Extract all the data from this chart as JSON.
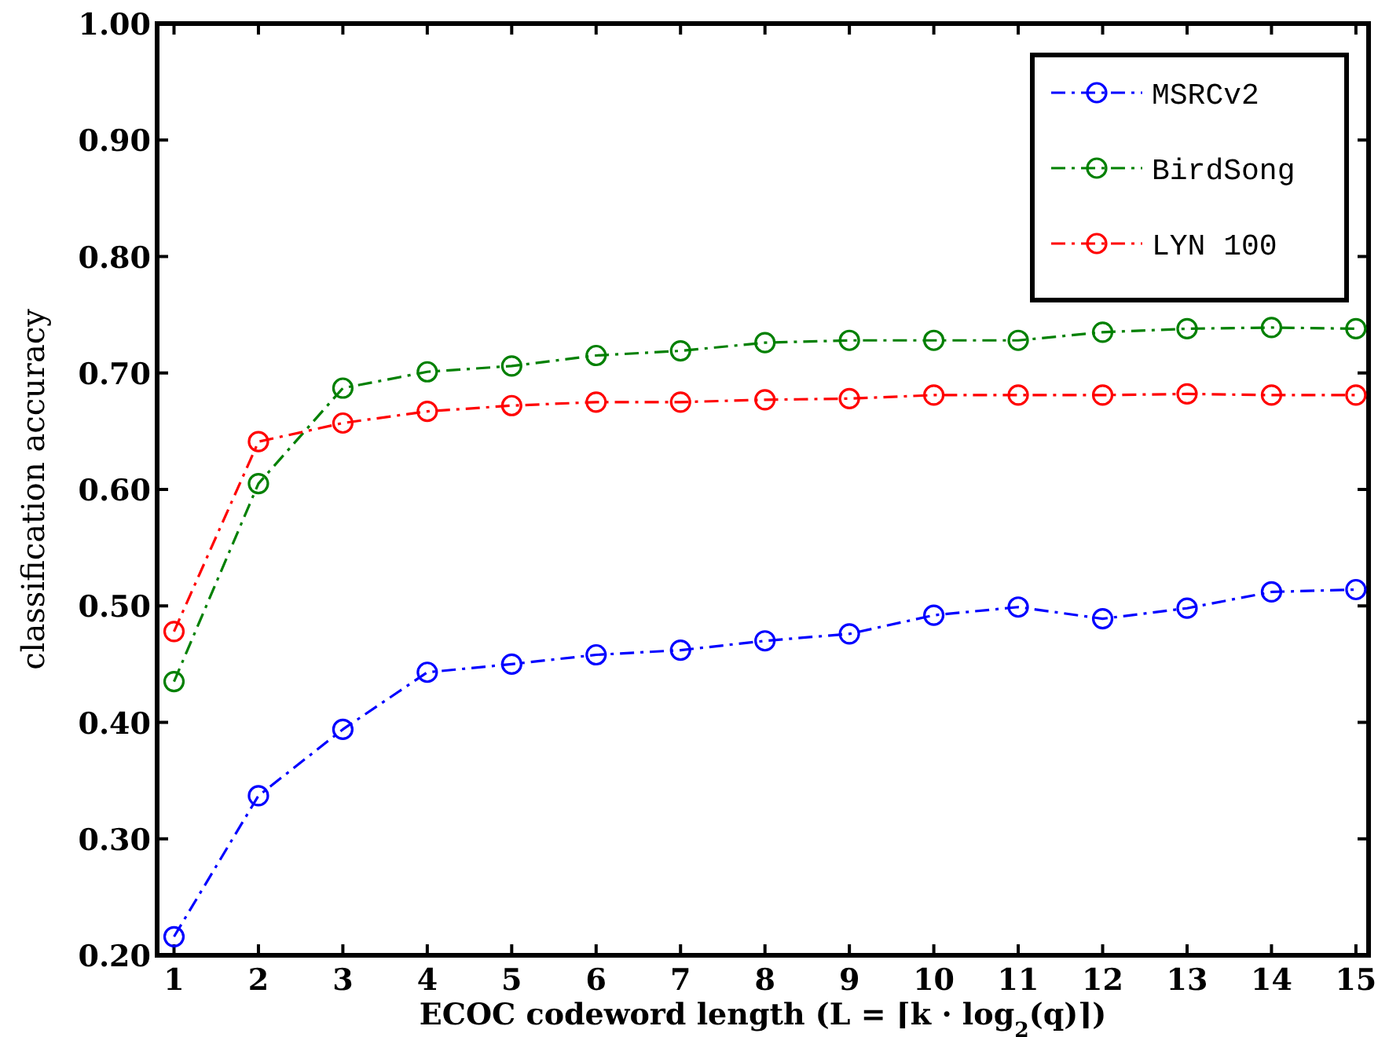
{
  "chart_data": {
    "type": "line",
    "xlabel": "ECOC codeword length (L = ⌈k · log$_{2}$(q)⌉)",
    "ylabel": "classification accuracy",
    "x": [
      1,
      2,
      3,
      4,
      5,
      6,
      7,
      8,
      9,
      10,
      11,
      12,
      13,
      14,
      15
    ],
    "xlim": [
      0.8,
      15.15
    ],
    "xticks": [
      1,
      2,
      3,
      4,
      5,
      6,
      7,
      8,
      9,
      10,
      11,
      12,
      13,
      14,
      15
    ],
    "ylim": [
      0.2,
      1.0
    ],
    "yticks": [
      {
        "value": 0.2,
        "label": "0.20"
      },
      {
        "value": 0.3,
        "label": "0.30"
      },
      {
        "value": 0.4,
        "label": "0.40"
      },
      {
        "value": 0.5,
        "label": "0.50"
      },
      {
        "value": 0.6,
        "label": "0.60"
      },
      {
        "value": 0.7,
        "label": "0.70"
      },
      {
        "value": 0.8,
        "label": "0.80"
      },
      {
        "value": 0.9,
        "label": "0.90"
      },
      {
        "value": 1.0,
        "label": "1.00"
      }
    ],
    "series": [
      {
        "name": "MSRCv2",
        "color": "#0000ff",
        "values": [
          0.216,
          0.337,
          0.394,
          0.443,
          0.45,
          0.458,
          0.462,
          0.47,
          0.476,
          0.492,
          0.499,
          0.489,
          0.498,
          0.512,
          0.514
        ]
      },
      {
        "name": "BirdSong",
        "color": "#008000",
        "values": [
          0.435,
          0.605,
          0.687,
          0.701,
          0.706,
          0.715,
          0.719,
          0.726,
          0.728,
          0.728,
          0.728,
          0.735,
          0.738,
          0.739,
          0.738
        ]
      },
      {
        "name": "LYN 100",
        "color": "#ff0000",
        "values": [
          0.478,
          0.641,
          0.657,
          0.667,
          0.672,
          0.675,
          0.675,
          0.677,
          0.678,
          0.681,
          0.681,
          0.681,
          0.682,
          0.681,
          0.681
        ]
      }
    ],
    "legend": "top right",
    "marker": "circle",
    "line_style": "dashed",
    "grid": false
  }
}
